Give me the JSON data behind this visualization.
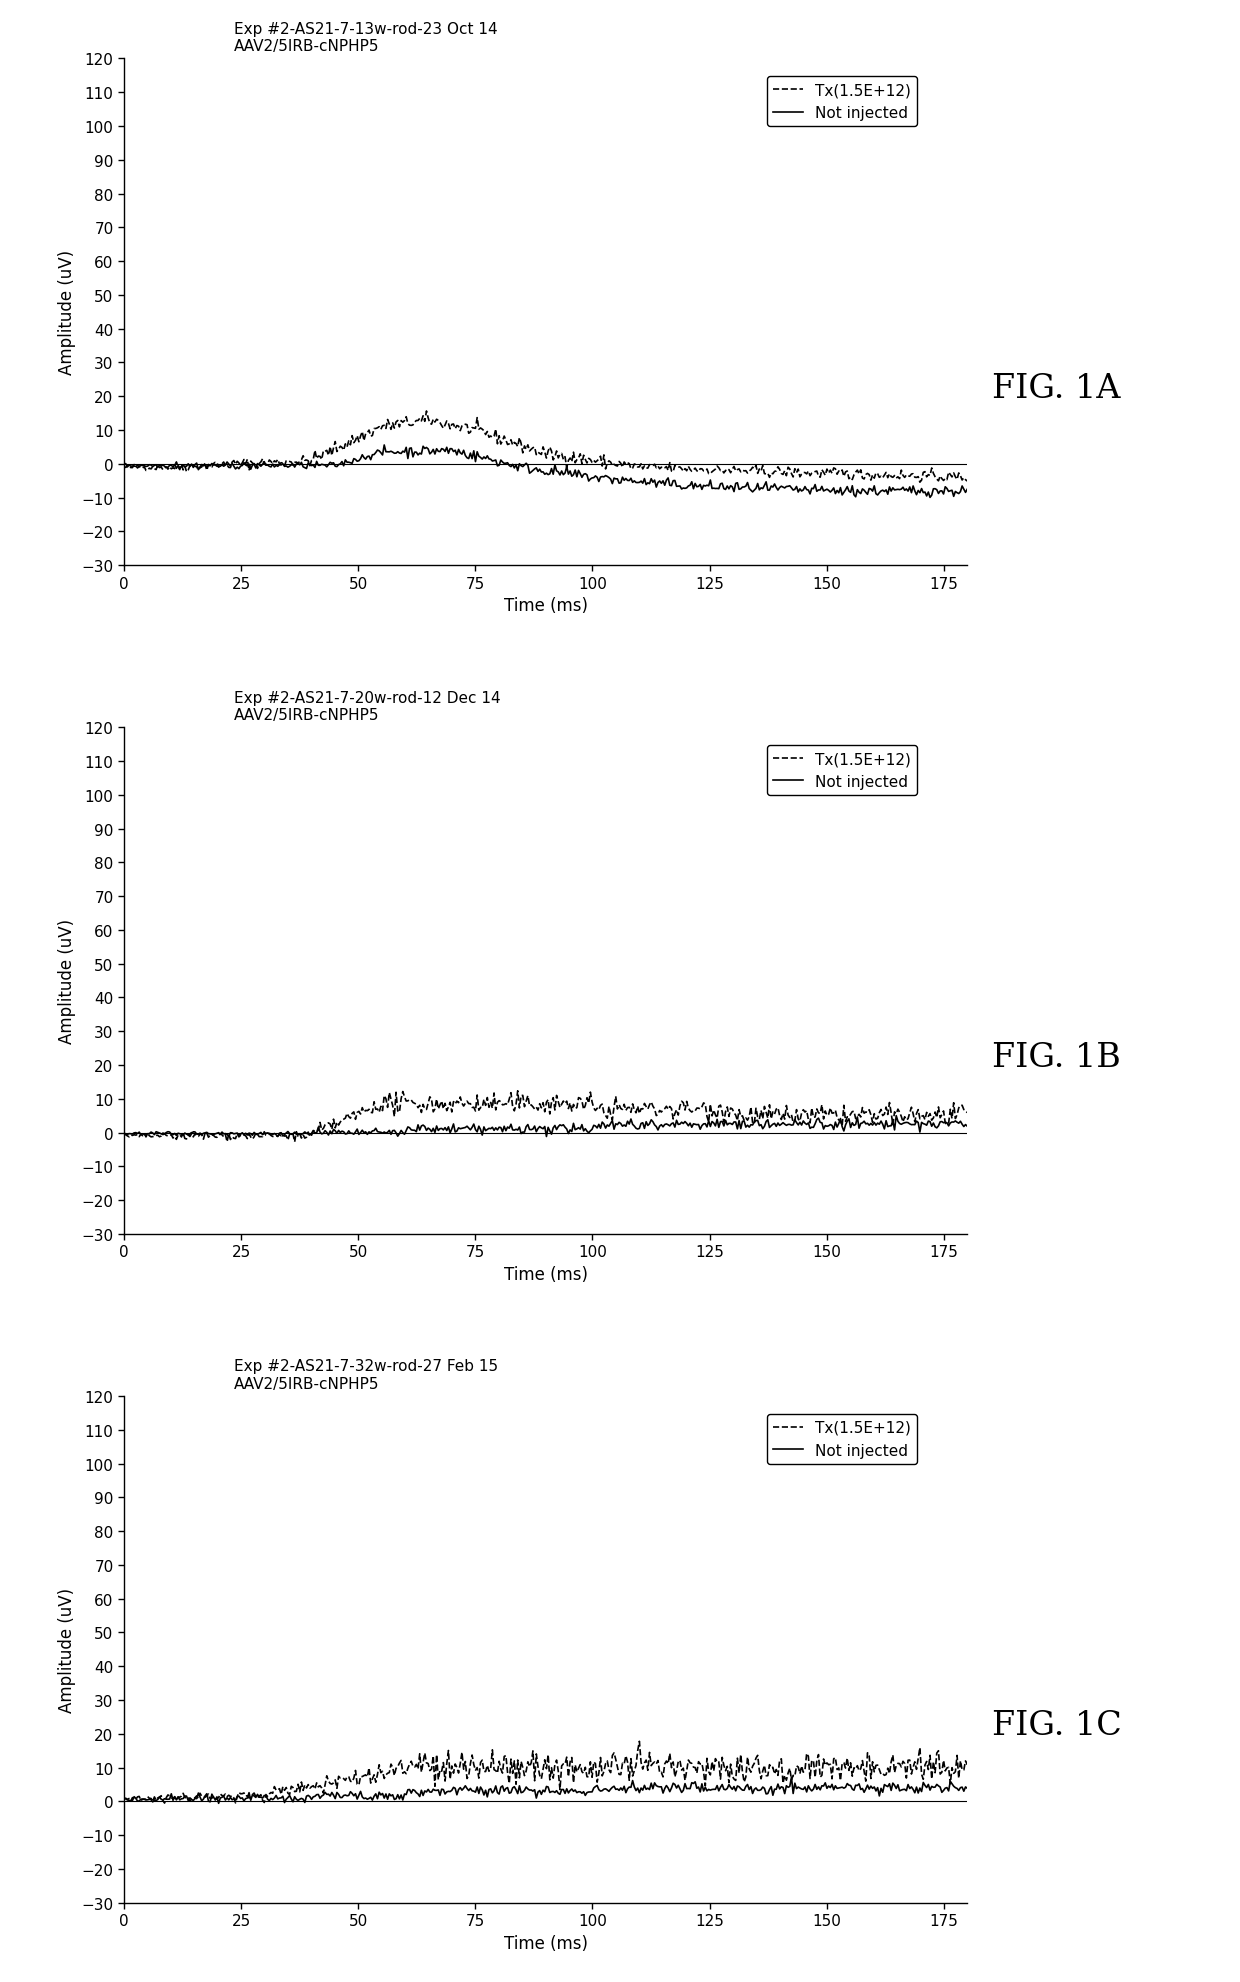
{
  "panels": [
    {
      "title_line1": "Exp #2-AS21-7-13w-rod-23 Oct 14",
      "title_line2": "AAV2/5IRB-cNPHP5",
      "fig_label": "FIG. 1A",
      "ylim": [
        -30,
        120
      ],
      "yticks": [
        -30,
        -20,
        -10,
        0,
        10,
        20,
        30,
        40,
        50,
        60,
        70,
        80,
        90,
        100,
        110,
        120
      ],
      "xlim": [
        0,
        180
      ],
      "xticks": [
        0,
        25,
        50,
        75,
        100,
        125,
        150,
        175
      ]
    },
    {
      "title_line1": "Exp #2-AS21-7-20w-rod-12 Dec 14",
      "title_line2": "AAV2/5IRB-cNPHP5",
      "fig_label": "FIG. 1B",
      "ylim": [
        -30,
        120
      ],
      "yticks": [
        -30,
        -20,
        -10,
        0,
        10,
        20,
        30,
        40,
        50,
        60,
        70,
        80,
        90,
        100,
        110,
        120
      ],
      "xlim": [
        0,
        180
      ],
      "xticks": [
        0,
        25,
        50,
        75,
        100,
        125,
        150,
        175
      ]
    },
    {
      "title_line1": "Exp #2-AS21-7-32w-rod-27 Feb 15",
      "title_line2": "AAV2/5IRB-cNPHP5",
      "fig_label": "FIG. 1C",
      "ylim": [
        -30,
        120
      ],
      "yticks": [
        -30,
        -20,
        -10,
        0,
        10,
        20,
        30,
        40,
        50,
        60,
        70,
        80,
        90,
        100,
        110,
        120
      ],
      "xlim": [
        0,
        180
      ],
      "xticks": [
        0,
        25,
        50,
        75,
        100,
        125,
        150,
        175
      ]
    }
  ],
  "ylabel": "Amplitude (uV)",
  "xlabel": "Time (ms)",
  "legend_tx": "Tx(1.5E+12)",
  "legend_ni": "Not injected",
  "line_color": "#000000",
  "background_color": "#ffffff"
}
